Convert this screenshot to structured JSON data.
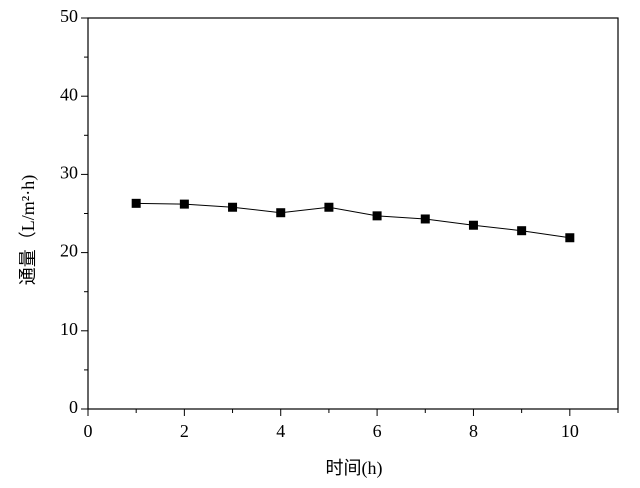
{
  "chart_data": {
    "type": "line",
    "x": [
      1,
      2,
      3,
      4,
      5,
      6,
      7,
      8,
      9,
      10
    ],
    "series": [
      {
        "name": null,
        "color": "#000000",
        "values": [
          26.3,
          26.2,
          25.8,
          25.1,
          25.8,
          24.7,
          24.3,
          23.5,
          22.8,
          21.9
        ]
      }
    ],
    "xlabel": "时间(h)",
    "ylabel": "通量（L/m²·h)",
    "xlim": [
      0,
      11
    ],
    "xticks": [
      0,
      2,
      4,
      6,
      8,
      10
    ],
    "ylim": [
      0,
      50
    ],
    "yticks": [
      0,
      10,
      20,
      30,
      40,
      50
    ]
  }
}
